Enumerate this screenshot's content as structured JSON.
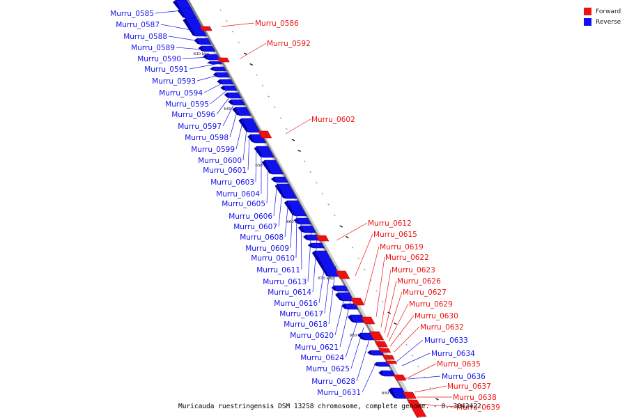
{
  "legend": {
    "forward_label": "Forward",
    "reverse_label": "Reverse",
    "forward_color": "#ee1111",
    "reverse_color": "#1111ee"
  },
  "caption": "Muricauda ruestringensis DSM 13258 chromosome, complete genome. - 0..3842422",
  "ticks": [
    "630 kbp",
    "640 kbp",
    "650 kbp",
    "660 kbp",
    "670 kbp",
    "680 kbp",
    "690 kbp"
  ],
  "forward_genes": [
    "Murru_0586",
    "Murru_0592",
    "Murru_0602",
    "Murru_0612",
    "Murru_0615",
    "Murru_0619",
    "Murru_0622",
    "Murru_0623",
    "Murru_0626",
    "Murru_0627",
    "Murru_0629",
    "Murru_0630",
    "Murru_0632",
    "Murru_0635",
    "Murru_0637",
    "Murru_0638",
    "Murru_0639"
  ],
  "reverse_genes": [
    "Murru_0585",
    "Murru_0587",
    "Murru_0588",
    "Murru_0589",
    "Murru_0590",
    "Murru_0591",
    "Murru_0593",
    "Murru_0594",
    "Murru_0595",
    "Murru_0596",
    "Murru_0597",
    "Murru_0598",
    "Murru_0599",
    "Murru_0600",
    "Murru_0601",
    "Murru_0603",
    "Murru_0604",
    "Murru_0605",
    "Murru_0606",
    "Murru_0607",
    "Murru_0608",
    "Murru_0609",
    "Murru_0610",
    "Murru_0611",
    "Murru_0613",
    "Murru_0614",
    "Murru_0616",
    "Murru_0617",
    "Murru_0618",
    "Murru_0620",
    "Murru_0621",
    "Murru_0624",
    "Murru_0625",
    "Murru_0628",
    "Murru_0631",
    "Murru_0633",
    "Murru_0634",
    "Murru_0636"
  ]
}
